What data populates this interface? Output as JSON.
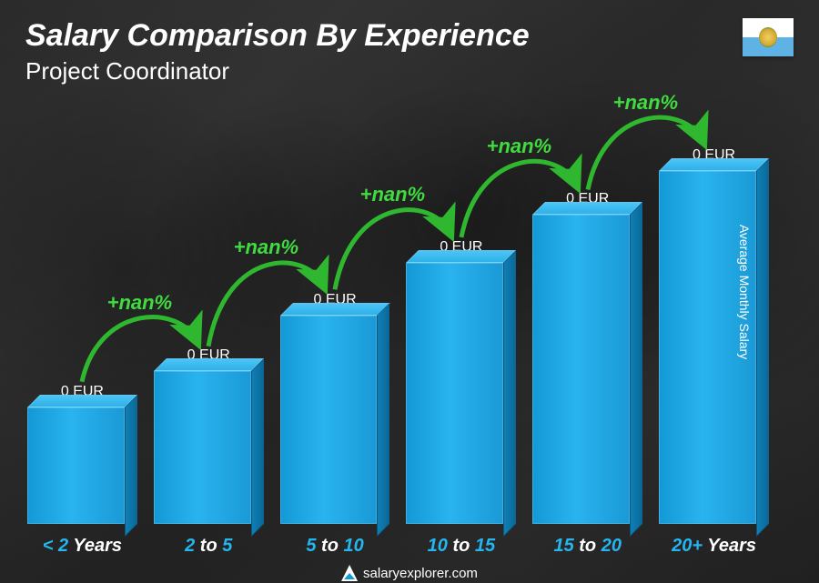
{
  "title": "Salary Comparison By Experience",
  "subtitle": "Project Coordinator",
  "y_axis_label": "Average Monthly Salary",
  "footer_text": "salaryexplorer.com",
  "flag": {
    "country": "San Marino",
    "top_color": "#ffffff",
    "bottom_color": "#5eb3e4"
  },
  "chart": {
    "type": "bar3d",
    "bar_front_gradient": [
      "#1399d6",
      "#29b3ef",
      "#1a9ad6"
    ],
    "bar_top_color": "#3bbef0",
    "bar_side_color": "#0c74a8",
    "value_color": "#ffffff",
    "value_fontsize": 16,
    "jump_label_color": "#3fdb3f",
    "jump_label_fontsize": 22,
    "category_hi_color": "#26b6ef",
    "category_lo_color": "#ffffff",
    "category_fontsize": 20,
    "bars": [
      {
        "value_label": "0 EUR",
        "height_pct": 29,
        "cat_pre": "< 2",
        "cat_post": " Years"
      },
      {
        "value_label": "0 EUR",
        "height_pct": 38,
        "cat_pre": "2",
        "cat_mid": " to ",
        "cat_post": "5",
        "jump": "+nan%"
      },
      {
        "value_label": "0 EUR",
        "height_pct": 52,
        "cat_pre": "5",
        "cat_mid": " to ",
        "cat_post": "10",
        "jump": "+nan%"
      },
      {
        "value_label": "0 EUR",
        "height_pct": 65,
        "cat_pre": "10",
        "cat_mid": " to ",
        "cat_post": "15",
        "jump": "+nan%"
      },
      {
        "value_label": "0 EUR",
        "height_pct": 77,
        "cat_pre": "15",
        "cat_mid": " to ",
        "cat_post": "20",
        "jump": "+nan%"
      },
      {
        "value_label": "0 EUR",
        "height_pct": 88,
        "cat_pre": "20+",
        "cat_post": " Years",
        "jump": "+nan%"
      }
    ]
  }
}
